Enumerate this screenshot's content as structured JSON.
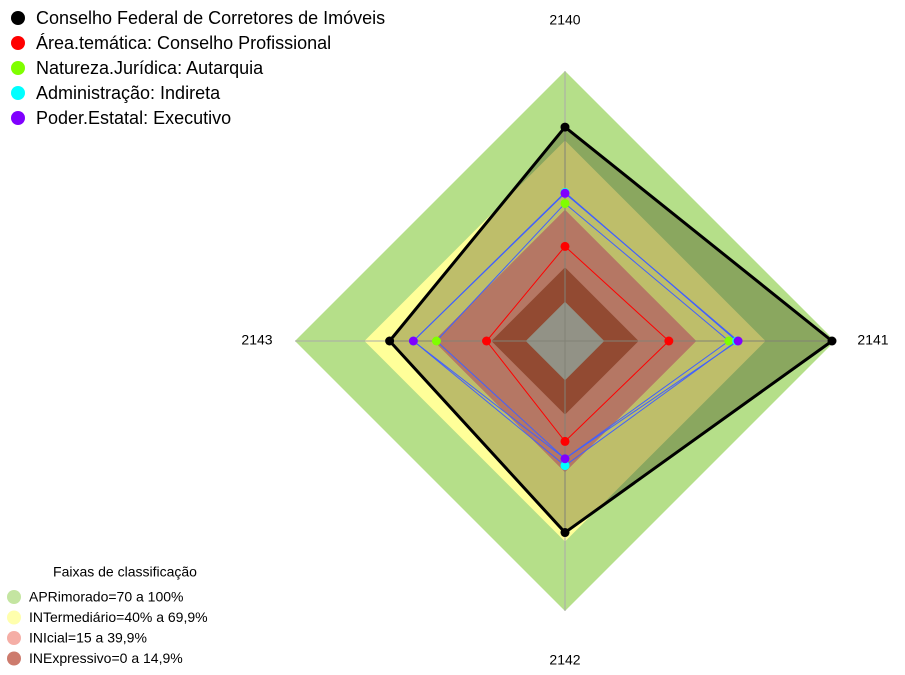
{
  "chart_data": {
    "type": "radar",
    "categories": [
      "2140",
      "2141",
      "2142",
      "2143"
    ],
    "rlim": [
      -17,
      100
    ],
    "series": [
      {
        "name": "Conselho Federal de Corretores de Imóveis",
        "color": "#000000",
        "values": [
          75.7,
          98.7,
          66,
          59
        ]
      },
      {
        "name": "Área.temática: Conselho Profissional",
        "color": "#ff0000",
        "values": [
          24,
          28,
          26.5,
          17
        ]
      },
      {
        "name": "Natureza.Jurídica: Autarquia",
        "color": "#7fff00",
        "values": [
          42.6,
          54,
          34,
          38.7
        ]
      },
      {
        "name": "Administração: Indireta",
        "color": "#00ffff",
        "values": [
          47.4,
          57.4,
          37,
          48.7
        ]
      },
      {
        "name": "Poder.Estatal: Executivo",
        "color": "#8000ff",
        "values": [
          47,
          58,
          34,
          48.7
        ]
      }
    ],
    "bands_title": "Faixas de classificação",
    "bands": [
      {
        "label": "APRimorado=70 a 100%",
        "color": "#b5df89",
        "range": [
          70,
          100
        ]
      },
      {
        "label": "INTermediário=40% a 69,9%",
        "color": "#ffff99",
        "range": [
          40,
          69.9
        ]
      },
      {
        "label": "INIcial=15 a 39,9%",
        "color": "#f29a90",
        "range": [
          15,
          39.9
        ]
      },
      {
        "label": "INExpressivo=0 a 14,9%",
        "color": "#c05a48",
        "range": [
          0,
          14.9
        ]
      }
    ]
  }
}
